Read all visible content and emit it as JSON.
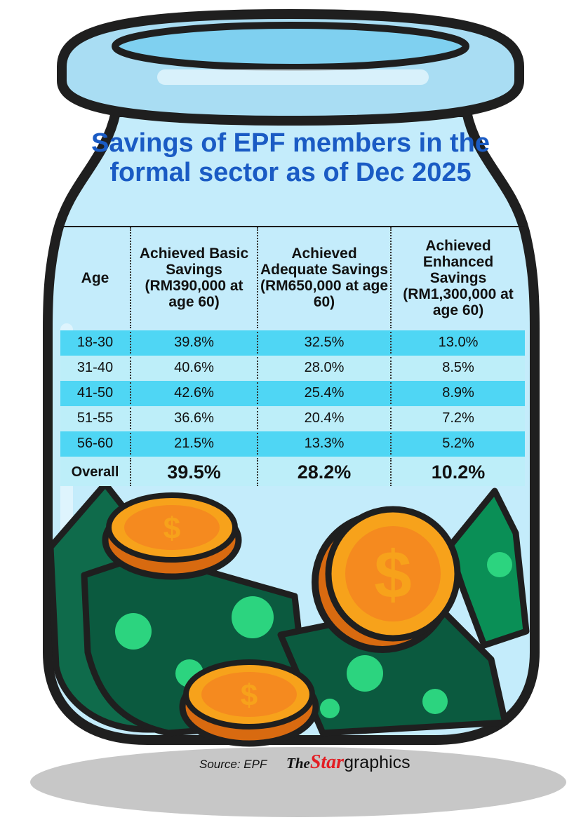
{
  "title": "Savings of EPF members in the formal sector as of Dec 2025",
  "source": "Source: EPF",
  "brand": {
    "part1": "The",
    "part2": "Star",
    "part3": "graphics"
  },
  "chart_data": {
    "type": "table",
    "title": "Savings of EPF members in the formal sector as of Dec 2025",
    "columns": [
      "Age",
      "Achieved Basic Savings (RM390,000 at age 60)",
      "Achieved Adequate Savings (RM650,000 at age 60)",
      "Achieved Enhanced Savings (RM1,300,000 at age 60)"
    ],
    "rows": [
      [
        "18-30",
        "39.8%",
        "32.5%",
        "13.0%"
      ],
      [
        "31-40",
        "40.6%",
        "28.0%",
        "8.5%"
      ],
      [
        "41-50",
        "42.6%",
        "25.4%",
        "8.9%"
      ],
      [
        "51-55",
        "36.6%",
        "20.4%",
        "7.2%"
      ],
      [
        "56-60",
        "21.5%",
        "13.3%",
        "5.2%"
      ]
    ],
    "overall": [
      "Overall",
      "39.5%",
      "28.2%",
      "10.2%"
    ]
  },
  "colors": {
    "jar_glass": "#c4ecfb",
    "jar_outline": "#1f1f1f",
    "title": "#1a5bc4",
    "row_dark": "#4fd6f4",
    "row_light": "#bdeef9",
    "money": "#07a65a",
    "coin": "#f7a21b",
    "brand_red": "#e31e24"
  }
}
